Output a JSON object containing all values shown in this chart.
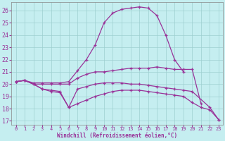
{
  "xlabel": "Windchill (Refroidissement éolien,°C)",
  "bg_color": "#c5eef0",
  "grid_color": "#9dcfcf",
  "line_color": "#993399",
  "xlim": [
    -0.5,
    23.5
  ],
  "ylim": [
    16.7,
    26.7
  ],
  "yticks": [
    17,
    18,
    19,
    20,
    21,
    22,
    23,
    24,
    25,
    26
  ],
  "xticks": [
    0,
    1,
    2,
    3,
    4,
    5,
    6,
    7,
    8,
    9,
    10,
    11,
    12,
    13,
    14,
    15,
    16,
    17,
    18,
    19,
    20,
    21,
    22,
    23
  ],
  "curves": [
    {
      "x": [
        0,
        1,
        2,
        3,
        4,
        5,
        6,
        7,
        8,
        9,
        10,
        11,
        12,
        13,
        14,
        15,
        16,
        17,
        18,
        19,
        20,
        21,
        22,
        23
      ],
      "y": [
        20.2,
        20.3,
        20.1,
        20.1,
        20.1,
        20.1,
        20.2,
        21.1,
        22.0,
        23.2,
        25.0,
        25.8,
        26.1,
        26.2,
        26.3,
        26.2,
        25.6,
        24.0,
        22.0,
        21.0,
        null,
        null,
        null,
        null
      ]
    },
    {
      "x": [
        0,
        1,
        2,
        3,
        4,
        5,
        6,
        7,
        8,
        9,
        10,
        11,
        12,
        13,
        14,
        15,
        16,
        17,
        18,
        19,
        20,
        21,
        22,
        23
      ],
      "y": [
        20.2,
        20.3,
        20.0,
        20.0,
        20.0,
        20.0,
        20.0,
        20.5,
        20.8,
        21.0,
        21.0,
        21.1,
        21.2,
        21.3,
        21.3,
        21.3,
        21.4,
        21.3,
        21.2,
        21.2,
        21.2,
        18.4,
        null,
        null
      ]
    },
    {
      "x": [
        0,
        1,
        2,
        3,
        4,
        5,
        6,
        7,
        8,
        9,
        10,
        11,
        12,
        13,
        14,
        15,
        16,
        17,
        18,
        19,
        20,
        21,
        22,
        23
      ],
      "y": [
        20.2,
        20.3,
        20.0,
        19.6,
        19.5,
        19.4,
        18.1,
        19.6,
        19.8,
        20.0,
        20.1,
        20.1,
        20.1,
        20.0,
        20.0,
        19.9,
        19.8,
        19.7,
        19.6,
        19.5,
        19.4,
        null,
        18.1,
        17.1
      ]
    },
    {
      "x": [
        0,
        1,
        2,
        3,
        4,
        5,
        6,
        7,
        8,
        9,
        10,
        11,
        12,
        13,
        14,
        15,
        16,
        17,
        18,
        19,
        20,
        21,
        22,
        23
      ],
      "y": [
        20.2,
        20.3,
        20.0,
        19.6,
        19.4,
        19.3,
        18.1,
        18.4,
        18.7,
        19.0,
        19.2,
        19.4,
        19.5,
        19.5,
        19.5,
        19.4,
        19.3,
        19.2,
        19.1,
        19.0,
        18.5,
        18.1,
        17.9,
        17.1
      ]
    }
  ]
}
